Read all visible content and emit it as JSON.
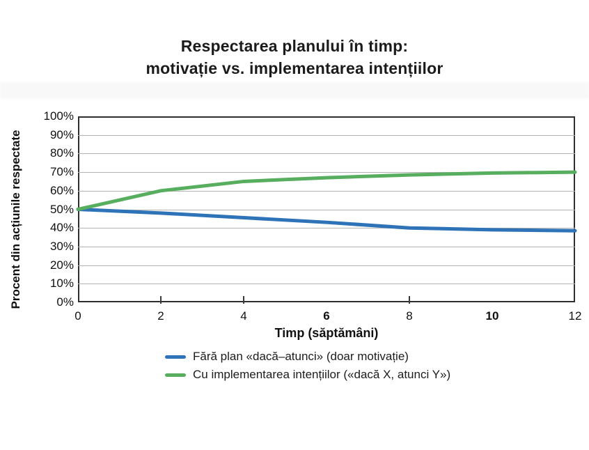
{
  "title": {
    "line1": "Respectarea planului în timp:",
    "line2": "motivație vs. implementarea intențiilor"
  },
  "y_axis": {
    "label": "Procent din acțiunile respectate",
    "ticks": [
      "100%",
      "90%",
      "80%",
      "70%",
      "60%",
      "50%",
      "40%",
      "30%",
      "20%",
      "10%",
      "0%"
    ]
  },
  "x_axis": {
    "label": "Timp (săptămâni)",
    "ticks": [
      {
        "label": "0",
        "value": 0,
        "bold": false
      },
      {
        "label": "2",
        "value": 2,
        "bold": false
      },
      {
        "label": "4",
        "value": 4,
        "bold": false
      },
      {
        "label": "6",
        "value": 6,
        "bold": true
      },
      {
        "label": "8",
        "value": 8,
        "bold": false
      },
      {
        "label": "10",
        "value": 10,
        "bold": true
      },
      {
        "label": "12",
        "value": 12,
        "bold": false
      }
    ],
    "tick_marks_at": [
      2,
      4,
      8
    ]
  },
  "colors": {
    "blue_line": "#2e73b8",
    "green_line": "#57ae5e",
    "gridline": "#b3b3b3",
    "frame": "#2e2e2e",
    "text": "#111111"
  },
  "chart_data": {
    "type": "line",
    "title": "Respectarea planului în timp: motivație vs. implementarea intențiilor",
    "xlabel": "Timp (săptămâni)",
    "ylabel": "Procent din acțiunile respectate",
    "x": [
      0,
      2,
      4,
      6,
      8,
      10,
      12
    ],
    "xlim": [
      0,
      12
    ],
    "ylim": [
      0,
      100
    ],
    "y_tick_step": 10,
    "grid": true,
    "legend_position": "bottom",
    "series": [
      {
        "name": "Fără plan «dacă–atunci» (doar motivație)",
        "color": "#2e73b8",
        "values": [
          50,
          48,
          45.5,
          43,
          40,
          39,
          38.5
        ]
      },
      {
        "name": "Cu implementarea intențiilor («dacă X, atunci Y»)",
        "color": "#57ae5e",
        "values": [
          50,
          60,
          65,
          67,
          68.5,
          69.5,
          70
        ]
      }
    ]
  }
}
